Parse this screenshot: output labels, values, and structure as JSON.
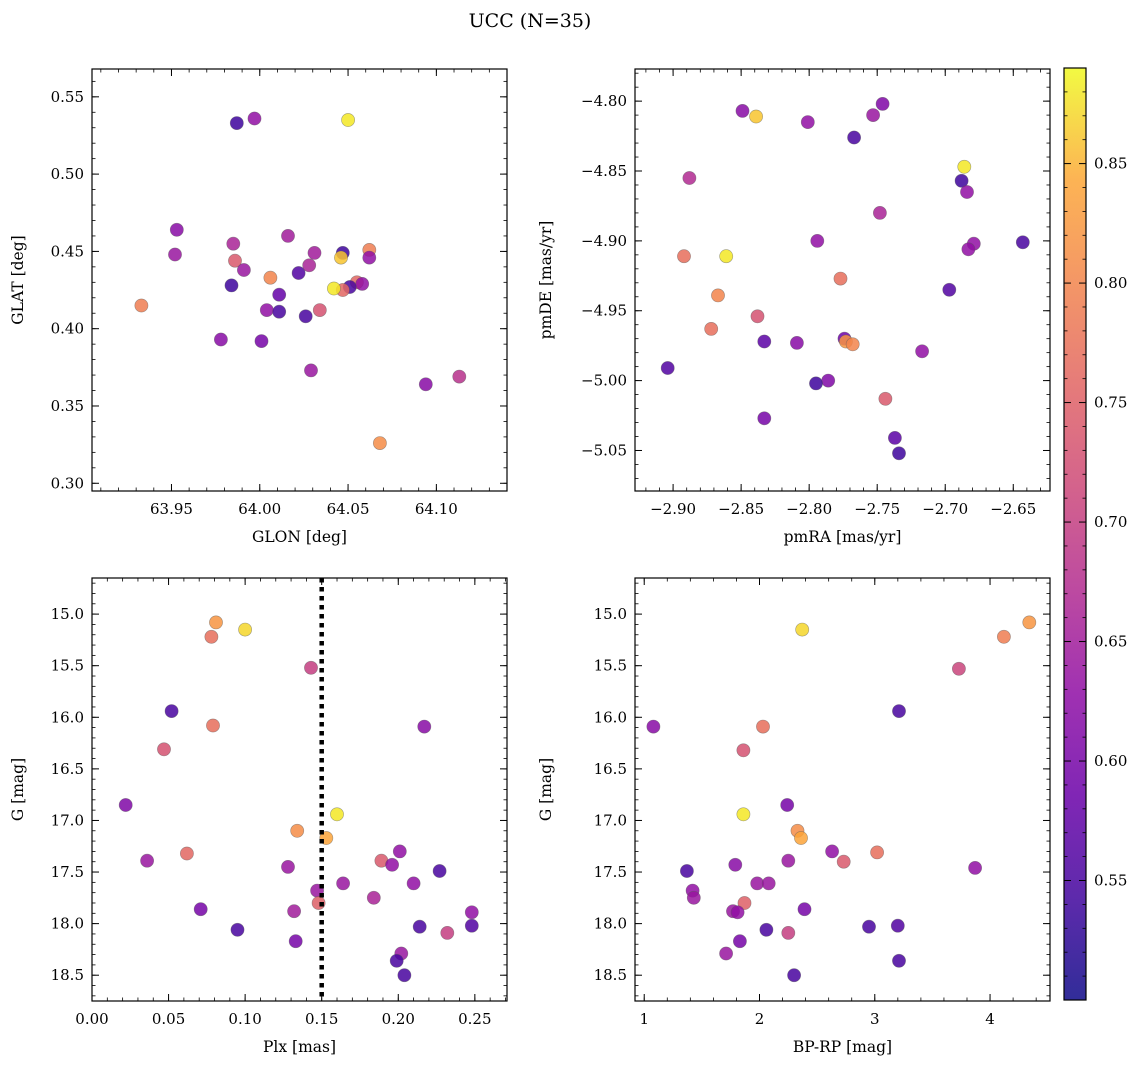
{
  "figure": {
    "title": "UCC (N=35)",
    "colorbar": {
      "colormap": "plasma",
      "range": [
        0.5,
        0.89
      ],
      "ticks": [
        "0.55",
        "0.60",
        "0.65",
        "0.70",
        "0.75",
        "0.80",
        "0.85"
      ],
      "tick_values": [
        0.55,
        0.6,
        0.65,
        0.7,
        0.75,
        0.8,
        0.85
      ]
    }
  },
  "chart_data": [
    {
      "type": "scatter",
      "panel": "top-left",
      "xlabel": "GLON [deg]",
      "ylabel": "GLAT [deg]",
      "xlim": [
        63.905,
        64.14
      ],
      "ylim": [
        0.295,
        0.568
      ],
      "xticks": [
        "63.95",
        "64.00",
        "64.05",
        "64.10"
      ],
      "xtick_values": [
        63.95,
        64.0,
        64.05,
        64.1
      ],
      "yticks": [
        "0.30",
        "0.35",
        "0.40",
        "0.45",
        "0.50",
        "0.55"
      ],
      "ytick_values": [
        0.3,
        0.35,
        0.4,
        0.45,
        0.5,
        0.55
      ],
      "grid": false,
      "points": [
        {
          "x": 63.987,
          "y": 0.533,
          "c": 0.54
        },
        {
          "x": 63.997,
          "y": 0.536,
          "c": 0.63
        },
        {
          "x": 64.05,
          "y": 0.535,
          "c": 0.88
        },
        {
          "x": 63.953,
          "y": 0.464,
          "c": 0.62
        },
        {
          "x": 63.952,
          "y": 0.448,
          "c": 0.64
        },
        {
          "x": 63.985,
          "y": 0.455,
          "c": 0.66
        },
        {
          "x": 63.986,
          "y": 0.444,
          "c": 0.74
        },
        {
          "x": 63.991,
          "y": 0.438,
          "c": 0.64
        },
        {
          "x": 64.016,
          "y": 0.46,
          "c": 0.65
        },
        {
          "x": 64.031,
          "y": 0.449,
          "c": 0.65
        },
        {
          "x": 64.047,
          "y": 0.449,
          "c": 0.54
        },
        {
          "x": 64.046,
          "y": 0.446,
          "c": 0.86
        },
        {
          "x": 64.062,
          "y": 0.451,
          "c": 0.79
        },
        {
          "x": 64.062,
          "y": 0.446,
          "c": 0.63
        },
        {
          "x": 64.022,
          "y": 0.436,
          "c": 0.56
        },
        {
          "x": 64.006,
          "y": 0.433,
          "c": 0.8
        },
        {
          "x": 64.028,
          "y": 0.441,
          "c": 0.66
        },
        {
          "x": 63.984,
          "y": 0.428,
          "c": 0.54
        },
        {
          "x": 64.055,
          "y": 0.43,
          "c": 0.76
        },
        {
          "x": 64.058,
          "y": 0.429,
          "c": 0.63
        },
        {
          "x": 64.051,
          "y": 0.427,
          "c": 0.55
        },
        {
          "x": 64.047,
          "y": 0.425,
          "c": 0.76
        },
        {
          "x": 64.042,
          "y": 0.426,
          "c": 0.88
        },
        {
          "x": 64.011,
          "y": 0.422,
          "c": 0.58
        },
        {
          "x": 64.004,
          "y": 0.412,
          "c": 0.63
        },
        {
          "x": 64.011,
          "y": 0.411,
          "c": 0.55
        },
        {
          "x": 64.034,
          "y": 0.412,
          "c": 0.73
        },
        {
          "x": 64.026,
          "y": 0.408,
          "c": 0.55
        },
        {
          "x": 63.933,
          "y": 0.415,
          "c": 0.79
        },
        {
          "x": 63.978,
          "y": 0.393,
          "c": 0.62
        },
        {
          "x": 64.001,
          "y": 0.392,
          "c": 0.6
        },
        {
          "x": 64.029,
          "y": 0.373,
          "c": 0.64
        },
        {
          "x": 64.094,
          "y": 0.364,
          "c": 0.62
        },
        {
          "x": 64.113,
          "y": 0.369,
          "c": 0.68
        },
        {
          "x": 64.068,
          "y": 0.326,
          "c": 0.81
        }
      ]
    },
    {
      "type": "scatter",
      "panel": "top-right",
      "xlabel": "pmRA [mas/yr]",
      "ylabel": "pmDE [mas/yr]",
      "xlim": [
        -2.928,
        -2.623
      ],
      "ylim": [
        -5.079,
        -4.777
      ],
      "xticks": [
        "−2.90",
        "−2.85",
        "−2.80",
        "−2.75",
        "−2.70",
        "−2.65"
      ],
      "xtick_values": [
        -2.9,
        -2.85,
        -2.8,
        -2.75,
        -2.7,
        -2.65
      ],
      "yticks": [
        "−4.80",
        "−4.85",
        "−4.90",
        "−4.95",
        "−5.00",
        "−5.05"
      ],
      "ytick_values": [
        -4.8,
        -4.85,
        -4.9,
        -4.95,
        -5.0,
        -5.05
      ],
      "grid": false,
      "points": [
        {
          "x": -2.849,
          "y": -4.807,
          "c": 0.62
        },
        {
          "x": -2.839,
          "y": -4.811,
          "c": 0.86
        },
        {
          "x": -2.801,
          "y": -4.815,
          "c": 0.63
        },
        {
          "x": -2.753,
          "y": -4.81,
          "c": 0.64
        },
        {
          "x": -2.746,
          "y": -4.802,
          "c": 0.61
        },
        {
          "x": -2.767,
          "y": -4.826,
          "c": 0.55
        },
        {
          "x": -2.888,
          "y": -4.855,
          "c": 0.67
        },
        {
          "x": -2.686,
          "y": -4.847,
          "c": 0.88
        },
        {
          "x": -2.688,
          "y": -4.857,
          "c": 0.54
        },
        {
          "x": -2.684,
          "y": -4.865,
          "c": 0.63
        },
        {
          "x": -2.748,
          "y": -4.88,
          "c": 0.66
        },
        {
          "x": -2.794,
          "y": -4.9,
          "c": 0.63
        },
        {
          "x": -2.679,
          "y": -4.902,
          "c": 0.63
        },
        {
          "x": -2.683,
          "y": -4.906,
          "c": 0.63
        },
        {
          "x": -2.643,
          "y": -4.901,
          "c": 0.55
        },
        {
          "x": -2.892,
          "y": -4.911,
          "c": 0.77
        },
        {
          "x": -2.861,
          "y": -4.911,
          "c": 0.88
        },
        {
          "x": -2.777,
          "y": -4.927,
          "c": 0.77
        },
        {
          "x": -2.697,
          "y": -4.935,
          "c": 0.56
        },
        {
          "x": -2.867,
          "y": -4.939,
          "c": 0.8
        },
        {
          "x": -2.838,
          "y": -4.954,
          "c": 0.73
        },
        {
          "x": -2.872,
          "y": -4.963,
          "c": 0.77
        },
        {
          "x": -2.774,
          "y": -4.97,
          "c": 0.59
        },
        {
          "x": -2.773,
          "y": -4.972,
          "c": 0.82
        },
        {
          "x": -2.768,
          "y": -4.974,
          "c": 0.8
        },
        {
          "x": -2.833,
          "y": -4.972,
          "c": 0.57
        },
        {
          "x": -2.809,
          "y": -4.973,
          "c": 0.62
        },
        {
          "x": -2.717,
          "y": -4.979,
          "c": 0.63
        },
        {
          "x": -2.904,
          "y": -4.991,
          "c": 0.56
        },
        {
          "x": -2.786,
          "y": -5.0,
          "c": 0.61
        },
        {
          "x": -2.795,
          "y": -5.002,
          "c": 0.54
        },
        {
          "x": -2.744,
          "y": -5.013,
          "c": 0.74
        },
        {
          "x": -2.833,
          "y": -5.027,
          "c": 0.6
        },
        {
          "x": -2.737,
          "y": -5.041,
          "c": 0.57
        },
        {
          "x": -2.734,
          "y": -5.052,
          "c": 0.54
        }
      ]
    },
    {
      "type": "scatter",
      "panel": "bottom-left",
      "xlabel": "Plx [mas]",
      "ylabel": "G [mag]",
      "xlim": [
        0.0,
        0.271
      ],
      "ylim": [
        18.75,
        14.65
      ],
      "y_inverted": true,
      "xticks": [
        "0.00",
        "0.05",
        "0.10",
        "0.15",
        "0.20",
        "0.25"
      ],
      "xtick_values": [
        0.0,
        0.05,
        0.1,
        0.15,
        0.2,
        0.25
      ],
      "yticks": [
        "15.0",
        "15.5",
        "16.0",
        "16.5",
        "17.0",
        "17.5",
        "18.0",
        "18.5"
      ],
      "ytick_values": [
        15.0,
        15.5,
        16.0,
        16.5,
        17.0,
        17.5,
        18.0,
        18.5
      ],
      "vline": {
        "x": 0.15,
        "style": "dotted",
        "color": "#000000"
      },
      "grid": false,
      "points": [
        {
          "x": 0.081,
          "y": 15.08,
          "c": 0.82
        },
        {
          "x": 0.078,
          "y": 15.22,
          "c": 0.77
        },
        {
          "x": 0.1,
          "y": 15.15,
          "c": 0.87
        },
        {
          "x": 0.143,
          "y": 15.52,
          "c": 0.7
        },
        {
          "x": 0.052,
          "y": 15.94,
          "c": 0.55
        },
        {
          "x": 0.079,
          "y": 16.08,
          "c": 0.77
        },
        {
          "x": 0.217,
          "y": 16.09,
          "c": 0.62
        },
        {
          "x": 0.047,
          "y": 16.31,
          "c": 0.73
        },
        {
          "x": 0.022,
          "y": 16.85,
          "c": 0.61
        },
        {
          "x": 0.16,
          "y": 16.94,
          "c": 0.88
        },
        {
          "x": 0.134,
          "y": 17.1,
          "c": 0.81
        },
        {
          "x": 0.153,
          "y": 17.17,
          "c": 0.84
        },
        {
          "x": 0.062,
          "y": 17.32,
          "c": 0.76
        },
        {
          "x": 0.201,
          "y": 17.3,
          "c": 0.63
        },
        {
          "x": 0.036,
          "y": 17.39,
          "c": 0.64
        },
        {
          "x": 0.189,
          "y": 17.39,
          "c": 0.74
        },
        {
          "x": 0.196,
          "y": 17.43,
          "c": 0.63
        },
        {
          "x": 0.128,
          "y": 17.45,
          "c": 0.64
        },
        {
          "x": 0.227,
          "y": 17.49,
          "c": 0.55
        },
        {
          "x": 0.164,
          "y": 17.61,
          "c": 0.64
        },
        {
          "x": 0.21,
          "y": 17.61,
          "c": 0.63
        },
        {
          "x": 0.147,
          "y": 17.68,
          "c": 0.64
        },
        {
          "x": 0.184,
          "y": 17.75,
          "c": 0.66
        },
        {
          "x": 0.148,
          "y": 17.8,
          "c": 0.75
        },
        {
          "x": 0.071,
          "y": 17.86,
          "c": 0.6
        },
        {
          "x": 0.132,
          "y": 17.88,
          "c": 0.65
        },
        {
          "x": 0.248,
          "y": 17.89,
          "c": 0.63
        },
        {
          "x": 0.214,
          "y": 18.03,
          "c": 0.55
        },
        {
          "x": 0.248,
          "y": 18.02,
          "c": 0.56
        },
        {
          "x": 0.095,
          "y": 18.06,
          "c": 0.55
        },
        {
          "x": 0.232,
          "y": 18.09,
          "c": 0.7
        },
        {
          "x": 0.133,
          "y": 18.17,
          "c": 0.6
        },
        {
          "x": 0.202,
          "y": 18.29,
          "c": 0.64
        },
        {
          "x": 0.199,
          "y": 18.36,
          "c": 0.55
        },
        {
          "x": 0.204,
          "y": 18.5,
          "c": 0.55
        }
      ]
    },
    {
      "type": "scatter",
      "panel": "bottom-right",
      "xlabel": "BP-RP [mag]",
      "ylabel": "G [mag]",
      "xlim": [
        0.92,
        4.52
      ],
      "ylim": [
        18.75,
        14.65
      ],
      "y_inverted": true,
      "xticks": [
        "1",
        "2",
        "3",
        "4"
      ],
      "xtick_values": [
        1,
        2,
        3,
        4
      ],
      "yticks": [
        "15.0",
        "15.5",
        "16.0",
        "16.5",
        "17.0",
        "17.5",
        "18.0",
        "18.5"
      ],
      "ytick_values": [
        15.0,
        15.5,
        16.0,
        16.5,
        17.0,
        17.5,
        18.0,
        18.5
      ],
      "grid": false,
      "points": [
        {
          "x": 4.34,
          "y": 15.08,
          "c": 0.82
        },
        {
          "x": 4.12,
          "y": 15.22,
          "c": 0.79
        },
        {
          "x": 2.37,
          "y": 15.15,
          "c": 0.87
        },
        {
          "x": 3.73,
          "y": 15.53,
          "c": 0.71
        },
        {
          "x": 3.21,
          "y": 15.94,
          "c": 0.55
        },
        {
          "x": 1.08,
          "y": 16.09,
          "c": 0.62
        },
        {
          "x": 2.03,
          "y": 16.09,
          "c": 0.77
        },
        {
          "x": 1.86,
          "y": 16.32,
          "c": 0.73
        },
        {
          "x": 2.24,
          "y": 16.85,
          "c": 0.6
        },
        {
          "x": 1.86,
          "y": 16.94,
          "c": 0.88
        },
        {
          "x": 2.33,
          "y": 17.1,
          "c": 0.81
        },
        {
          "x": 2.36,
          "y": 17.17,
          "c": 0.84
        },
        {
          "x": 2.63,
          "y": 17.3,
          "c": 0.63
        },
        {
          "x": 3.02,
          "y": 17.31,
          "c": 0.77
        },
        {
          "x": 2.25,
          "y": 17.39,
          "c": 0.64
        },
        {
          "x": 2.73,
          "y": 17.4,
          "c": 0.74
        },
        {
          "x": 1.79,
          "y": 17.43,
          "c": 0.62
        },
        {
          "x": 3.87,
          "y": 17.46,
          "c": 0.63
        },
        {
          "x": 1.37,
          "y": 17.49,
          "c": 0.55
        },
        {
          "x": 1.98,
          "y": 17.61,
          "c": 0.64
        },
        {
          "x": 2.08,
          "y": 17.61,
          "c": 0.64
        },
        {
          "x": 1.42,
          "y": 17.68,
          "c": 0.63
        },
        {
          "x": 1.43,
          "y": 17.75,
          "c": 0.64
        },
        {
          "x": 1.87,
          "y": 17.8,
          "c": 0.75
        },
        {
          "x": 1.77,
          "y": 17.88,
          "c": 0.64
        },
        {
          "x": 1.81,
          "y": 17.89,
          "c": 0.63
        },
        {
          "x": 2.39,
          "y": 17.86,
          "c": 0.6
        },
        {
          "x": 2.95,
          "y": 18.03,
          "c": 0.55
        },
        {
          "x": 3.2,
          "y": 18.02,
          "c": 0.56
        },
        {
          "x": 2.06,
          "y": 18.06,
          "c": 0.55
        },
        {
          "x": 2.25,
          "y": 18.09,
          "c": 0.7
        },
        {
          "x": 1.83,
          "y": 18.17,
          "c": 0.6
        },
        {
          "x": 1.71,
          "y": 18.29,
          "c": 0.64
        },
        {
          "x": 3.21,
          "y": 18.36,
          "c": 0.55
        },
        {
          "x": 2.3,
          "y": 18.5,
          "c": 0.55
        }
      ]
    }
  ]
}
